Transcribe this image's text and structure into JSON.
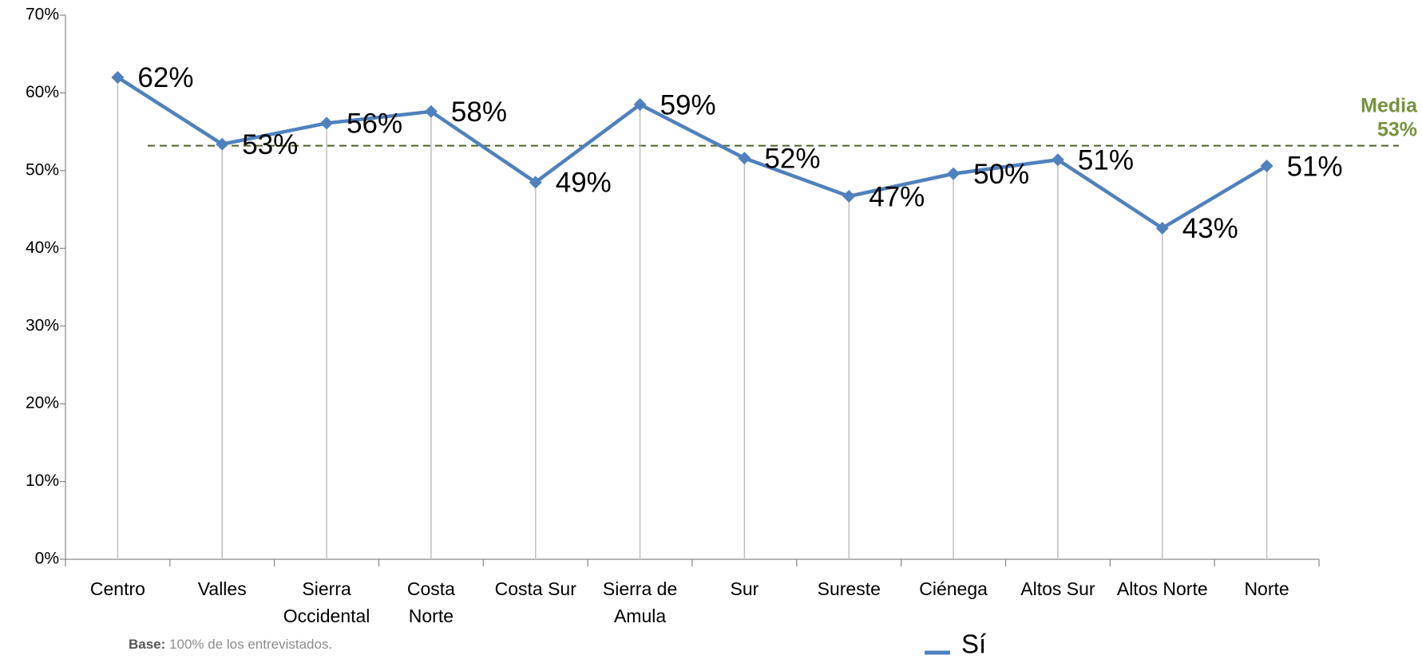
{
  "chart_data": {
    "type": "line",
    "categories": [
      "Centro",
      "Valles",
      "Sierra\nOccidental",
      "Costa\nNorte",
      "Costa Sur",
      "Sierra de\nAmula",
      "Sur",
      "Sureste",
      "Ciénega",
      "Altos Sur",
      "Altos Norte",
      "Norte"
    ],
    "series": [
      {
        "name": "Sí",
        "color": "#4f81bd",
        "values": [
          62,
          53.4,
          56.1,
          57.6,
          48.5,
          58.5,
          51.6,
          46.7,
          49.6,
          51.4,
          42.6,
          50.6
        ],
        "value_labels": [
          "62%",
          "53%",
          "56%",
          "58%",
          "49%",
          "59%",
          "52%",
          "47%",
          "50%",
          "51%",
          "43%",
          "51%"
        ]
      }
    ],
    "ylim": [
      0,
      70
    ],
    "yticks": [
      {
        "value": 0,
        "label": "0%"
      },
      {
        "value": 10,
        "label": "10%"
      },
      {
        "value": 20,
        "label": "20%"
      },
      {
        "value": 30,
        "label": "30%"
      },
      {
        "value": 40,
        "label": "40%"
      },
      {
        "value": 50,
        "label": "50%"
      },
      {
        "value": 60,
        "label": "60%"
      },
      {
        "value": 70,
        "label": "70%"
      }
    ],
    "reference_line": {
      "label": "Media",
      "value": 53.2,
      "value_label": "53%",
      "color": "#4f6228",
      "label_color": "#76923c"
    },
    "drop_lines": true,
    "footnote": {
      "label": "Base:",
      "text": "100% de los entrevistados."
    }
  }
}
